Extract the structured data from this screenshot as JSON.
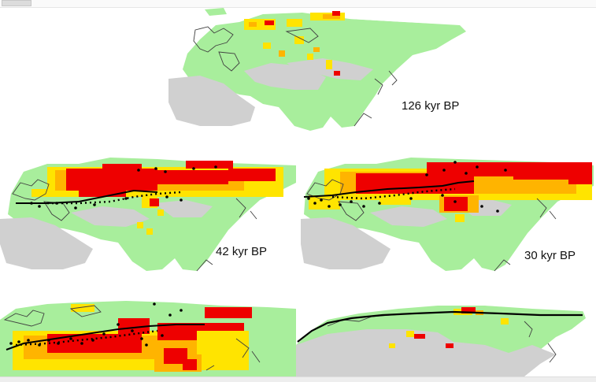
{
  "colors": {
    "land": "#a8ee9c",
    "desert": "#d0d0d0",
    "yellow": "#ffe400",
    "orange": "#ffb400",
    "red": "#ee0000",
    "coast": "#404040",
    "line": "#000000"
  },
  "panels": [
    {
      "id": "panel-126",
      "label": "126 kyr BP"
    },
    {
      "id": "panel-42",
      "label": "42 kyr BP"
    },
    {
      "id": "panel-30",
      "label": "30 kyr BP"
    },
    {
      "id": "panel-bl",
      "label": ""
    },
    {
      "id": "panel-br",
      "label": ""
    }
  ]
}
